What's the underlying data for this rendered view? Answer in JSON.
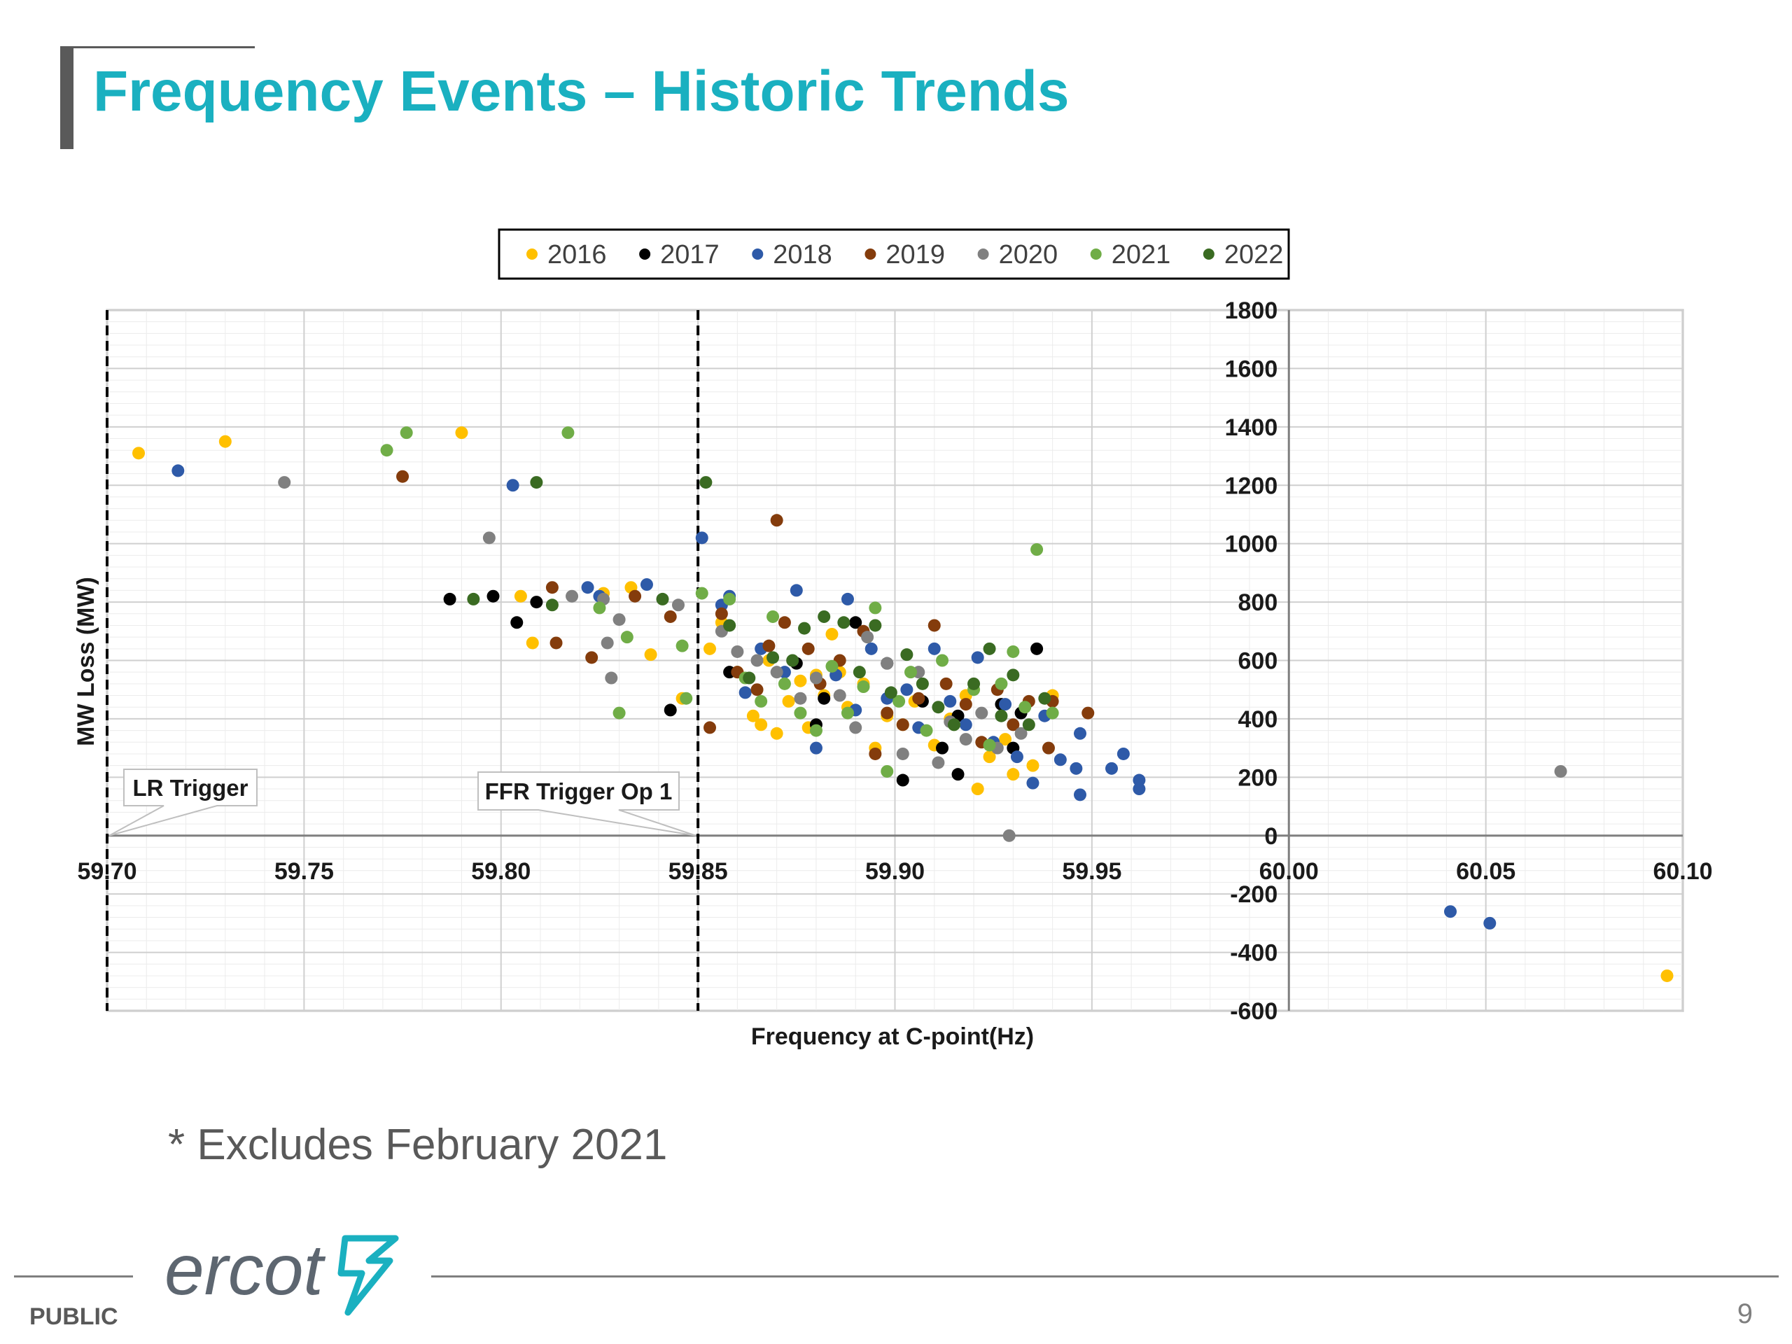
{
  "slide": {
    "title": "Frequency Events – Historic Trends",
    "note": "* Excludes February 2021",
    "footer_label": "PUBLIC",
    "page_number": "9",
    "logo_text": "ercot",
    "title_color": "#1ab0c0"
  },
  "chart_data": {
    "type": "scatter",
    "xlabel": "Frequency  at C-point(Hz)",
    "ylabel": "MW Loss (MW)",
    "xlim": [
      59.7,
      60.1
    ],
    "ylim": [
      -600,
      1800
    ],
    "x_ticks": [
      "59.70",
      "59.75",
      "59.80",
      "59.85",
      "59.90",
      "59.95",
      "60.00",
      "60.05",
      "60.10"
    ],
    "y_ticks": [
      "-600",
      "-400",
      "-200",
      "0",
      "200",
      "400",
      "600",
      "800",
      "1000",
      "1200",
      "1400",
      "1600",
      "1800"
    ],
    "grid": true,
    "legend_position": "top",
    "annotations": [
      {
        "text": "LR Trigger",
        "x": 59.7
      },
      {
        "text": "FFR Trigger Op 1",
        "x": 59.85
      }
    ],
    "series": [
      {
        "name": "2016",
        "color": "#ffc000",
        "points": [
          [
            59.708,
            1310
          ],
          [
            59.73,
            1350
          ],
          [
            59.79,
            1380
          ],
          [
            59.805,
            820
          ],
          [
            59.808,
            660
          ],
          [
            59.826,
            830
          ],
          [
            59.833,
            850
          ],
          [
            59.838,
            620
          ],
          [
            59.846,
            470
          ],
          [
            59.853,
            640
          ],
          [
            59.856,
            730
          ],
          [
            59.86,
            560
          ],
          [
            59.864,
            410
          ],
          [
            59.866,
            380
          ],
          [
            59.868,
            600
          ],
          [
            59.87,
            350
          ],
          [
            59.873,
            460
          ],
          [
            59.876,
            530
          ],
          [
            59.878,
            370
          ],
          [
            59.88,
            550
          ],
          [
            59.882,
            480
          ],
          [
            59.884,
            690
          ],
          [
            59.886,
            560
          ],
          [
            59.888,
            440
          ],
          [
            59.892,
            520
          ],
          [
            59.895,
            300
          ],
          [
            59.898,
            410
          ],
          [
            59.902,
            380
          ],
          [
            59.905,
            460
          ],
          [
            59.91,
            310
          ],
          [
            59.914,
            400
          ],
          [
            59.918,
            480
          ],
          [
            59.921,
            160
          ],
          [
            59.924,
            270
          ],
          [
            59.928,
            330
          ],
          [
            59.93,
            210
          ],
          [
            59.935,
            240
          ],
          [
            59.94,
            480
          ],
          [
            60.096,
            -480
          ]
        ]
      },
      {
        "name": "2017",
        "color": "#000000",
        "points": [
          [
            59.787,
            810
          ],
          [
            59.798,
            820
          ],
          [
            59.804,
            730
          ],
          [
            59.809,
            800
          ],
          [
            59.843,
            430
          ],
          [
            59.858,
            560
          ],
          [
            59.875,
            590
          ],
          [
            59.88,
            380
          ],
          [
            59.882,
            470
          ],
          [
            59.89,
            730
          ],
          [
            59.898,
            590
          ],
          [
            59.902,
            190
          ],
          [
            59.907,
            460
          ],
          [
            59.912,
            300
          ],
          [
            59.916,
            210
          ],
          [
            59.916,
            410
          ],
          [
            59.927,
            450
          ],
          [
            59.932,
            420
          ],
          [
            59.936,
            640
          ],
          [
            59.93,
            300
          ]
        ]
      },
      {
        "name": "2018",
        "color": "#2e5aa8",
        "points": [
          [
            59.718,
            1250
          ],
          [
            59.803,
            1200
          ],
          [
            59.851,
            1020
          ],
          [
            59.822,
            850
          ],
          [
            59.825,
            820
          ],
          [
            59.837,
            860
          ],
          [
            59.856,
            790
          ],
          [
            59.858,
            820
          ],
          [
            59.862,
            490
          ],
          [
            59.866,
            640
          ],
          [
            59.872,
            560
          ],
          [
            59.875,
            840
          ],
          [
            59.88,
            300
          ],
          [
            59.885,
            550
          ],
          [
            59.888,
            810
          ],
          [
            59.89,
            430
          ],
          [
            59.894,
            640
          ],
          [
            59.898,
            470
          ],
          [
            59.903,
            500
          ],
          [
            59.906,
            370
          ],
          [
            59.91,
            640
          ],
          [
            59.914,
            460
          ],
          [
            59.918,
            380
          ],
          [
            59.921,
            610
          ],
          [
            59.925,
            320
          ],
          [
            59.928,
            450
          ],
          [
            59.931,
            270
          ],
          [
            59.935,
            180
          ],
          [
            59.938,
            410
          ],
          [
            59.942,
            260
          ],
          [
            59.946,
            230
          ],
          [
            59.947,
            140
          ],
          [
            59.947,
            350
          ],
          [
            59.955,
            230
          ],
          [
            59.958,
            280
          ],
          [
            59.962,
            190
          ],
          [
            59.962,
            160
          ],
          [
            60.041,
            -260
          ],
          [
            60.051,
            -300
          ]
        ]
      },
      {
        "name": "2019",
        "color": "#843c0c",
        "points": [
          [
            59.775,
            1230
          ],
          [
            59.813,
            850
          ],
          [
            59.814,
            660
          ],
          [
            59.823,
            610
          ],
          [
            59.834,
            820
          ],
          [
            59.843,
            750
          ],
          [
            59.853,
            370
          ],
          [
            59.856,
            760
          ],
          [
            59.86,
            560
          ],
          [
            59.865,
            500
          ],
          [
            59.868,
            650
          ],
          [
            59.87,
            1080
          ],
          [
            59.872,
            730
          ],
          [
            59.878,
            640
          ],
          [
            59.881,
            520
          ],
          [
            59.886,
            600
          ],
          [
            59.892,
            700
          ],
          [
            59.895,
            280
          ],
          [
            59.898,
            420
          ],
          [
            59.902,
            380
          ],
          [
            59.906,
            470
          ],
          [
            59.91,
            720
          ],
          [
            59.913,
            520
          ],
          [
            59.918,
            450
          ],
          [
            59.922,
            320
          ],
          [
            59.926,
            500
          ],
          [
            59.93,
            380
          ],
          [
            59.934,
            460
          ],
          [
            59.939,
            300
          ],
          [
            59.94,
            460
          ],
          [
            59.949,
            420
          ]
        ]
      },
      {
        "name": "2020",
        "color": "#808080",
        "points": [
          [
            59.745,
            1210
          ],
          [
            59.797,
            1020
          ],
          [
            59.818,
            820
          ],
          [
            59.826,
            810
          ],
          [
            59.827,
            660
          ],
          [
            59.828,
            540
          ],
          [
            59.83,
            740
          ],
          [
            59.845,
            790
          ],
          [
            59.856,
            700
          ],
          [
            59.86,
            630
          ],
          [
            59.865,
            600
          ],
          [
            59.87,
            560
          ],
          [
            59.876,
            470
          ],
          [
            59.88,
            540
          ],
          [
            59.886,
            480
          ],
          [
            59.89,
            370
          ],
          [
            59.893,
            680
          ],
          [
            59.898,
            590
          ],
          [
            59.902,
            280
          ],
          [
            59.906,
            560
          ],
          [
            59.911,
            250
          ],
          [
            59.914,
            390
          ],
          [
            59.918,
            330
          ],
          [
            59.922,
            420
          ],
          [
            59.926,
            300
          ],
          [
            59.929,
            0
          ],
          [
            59.932,
            350
          ],
          [
            60.069,
            220
          ]
        ]
      },
      {
        "name": "2021",
        "color": "#70ad47",
        "points": [
          [
            59.771,
            1320
          ],
          [
            59.776,
            1380
          ],
          [
            59.817,
            1380
          ],
          [
            59.825,
            780
          ],
          [
            59.83,
            420
          ],
          [
            59.832,
            680
          ],
          [
            59.846,
            650
          ],
          [
            59.847,
            470
          ],
          [
            59.851,
            830
          ],
          [
            59.858,
            810
          ],
          [
            59.862,
            540
          ],
          [
            59.866,
            460
          ],
          [
            59.869,
            750
          ],
          [
            59.872,
            520
          ],
          [
            59.876,
            420
          ],
          [
            59.88,
            360
          ],
          [
            59.884,
            580
          ],
          [
            59.888,
            420
          ],
          [
            59.892,
            510
          ],
          [
            59.895,
            780
          ],
          [
            59.898,
            220
          ],
          [
            59.901,
            460
          ],
          [
            59.904,
            560
          ],
          [
            59.908,
            360
          ],
          [
            59.912,
            600
          ],
          [
            59.915,
            380
          ],
          [
            59.92,
            500
          ],
          [
            59.924,
            310
          ],
          [
            59.927,
            520
          ],
          [
            59.93,
            630
          ],
          [
            59.933,
            440
          ],
          [
            59.936,
            980
          ],
          [
            59.94,
            420
          ]
        ]
      },
      {
        "name": "2022",
        "color": "#3a6b22",
        "points": [
          [
            59.793,
            810
          ],
          [
            59.809,
            1210
          ],
          [
            59.813,
            790
          ],
          [
            59.841,
            810
          ],
          [
            59.852,
            1210
          ],
          [
            59.858,
            720
          ],
          [
            59.863,
            540
          ],
          [
            59.869,
            610
          ],
          [
            59.874,
            600
          ],
          [
            59.877,
            710
          ],
          [
            59.882,
            750
          ],
          [
            59.887,
            730
          ],
          [
            59.891,
            560
          ],
          [
            59.895,
            720
          ],
          [
            59.899,
            490
          ],
          [
            59.903,
            620
          ],
          [
            59.907,
            520
          ],
          [
            59.911,
            440
          ],
          [
            59.915,
            380
          ],
          [
            59.92,
            520
          ],
          [
            59.924,
            640
          ],
          [
            59.927,
            410
          ],
          [
            59.93,
            550
          ],
          [
            59.934,
            380
          ],
          [
            59.938,
            470
          ]
        ]
      }
    ]
  }
}
